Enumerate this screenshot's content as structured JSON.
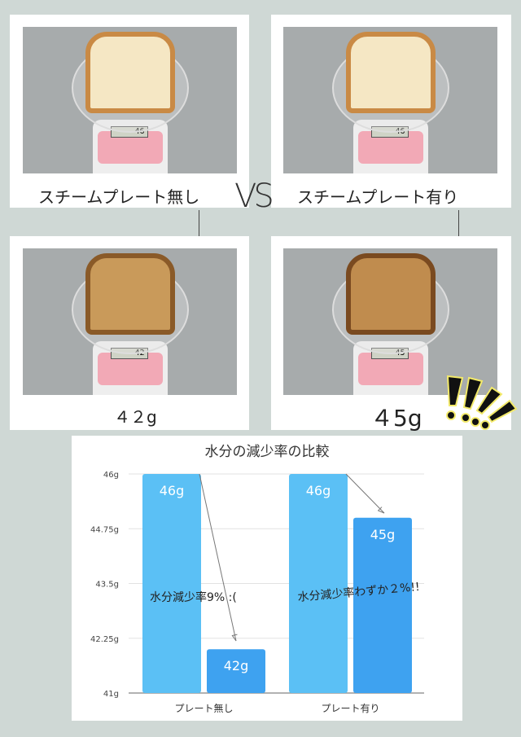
{
  "panels": {
    "before_no_plate": {
      "label": "スチームプレート無し",
      "display": "46"
    },
    "before_plate": {
      "label": "スチームプレート有り",
      "display": "46"
    },
    "after_no_plate": {
      "label": "４２g",
      "display": "42"
    },
    "after_plate": {
      "label": "４5g",
      "display": "45"
    },
    "vs": "VS"
  },
  "colors": {
    "background": "#cfd8d5",
    "bar_before": "#5bc0f5",
    "bar_after": "#3ea2f0"
  },
  "chart_data": {
    "type": "bar",
    "title": "水分の減少率の比較",
    "categories": [
      "プレート無し",
      "プレート有り"
    ],
    "series": [
      {
        "values": [
          46,
          46
        ]
      },
      {
        "values": [
          42,
          45
        ]
      }
    ],
    "data_labels": [
      [
        "46g",
        "42g"
      ],
      [
        "46g",
        "45g"
      ]
    ],
    "ylim": [
      41,
      46
    ],
    "yticks": [
      "41g",
      "42.25g",
      "43.5g",
      "44.75g",
      "46g"
    ],
    "grid": true,
    "annotations": [
      "水分減少率9% :(",
      "水分減少率わずか２%!!"
    ]
  }
}
